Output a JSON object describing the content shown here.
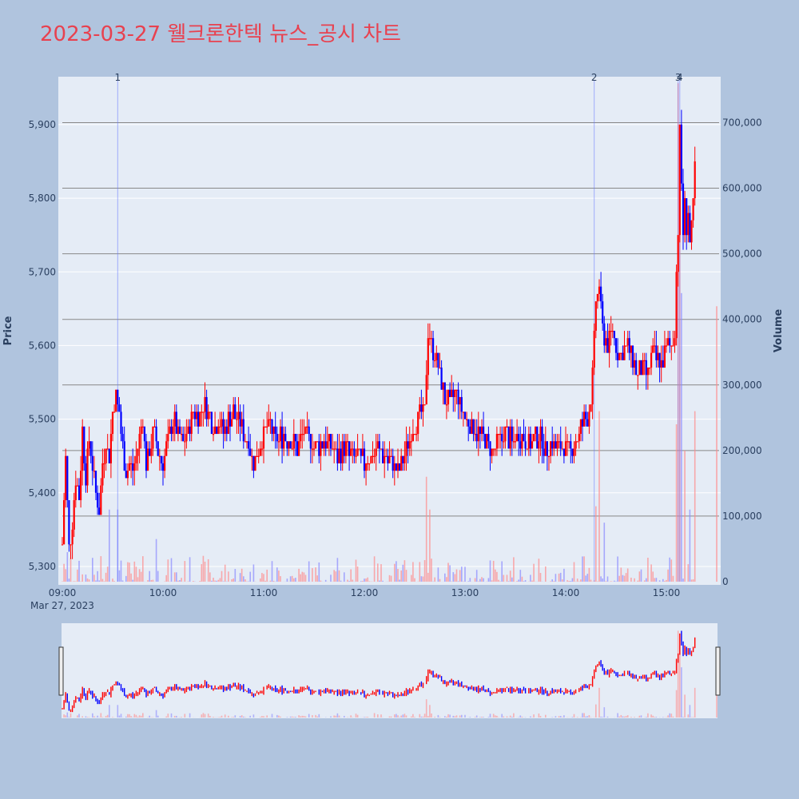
{
  "title": "2023-03-27 웰크론한텍 뉴스_공시 차트",
  "colors": {
    "background": "#b0c4de",
    "plot_bg": "#e5ecf6",
    "up": "#ff0000",
    "down": "#0000ff",
    "title": "#e8414f",
    "grid": "#ffffff",
    "volume_grid": "#888888"
  },
  "chart_data": {
    "type": "candlestick",
    "x_axis": {
      "ticks": [
        "09:00",
        "10:00",
        "11:00",
        "12:00",
        "13:00",
        "14:00",
        "15:00"
      ],
      "date_label": "Mar 27, 2023",
      "start": "09:00",
      "end": "15:30"
    },
    "y_price": {
      "label": "Price",
      "range": [
        5275,
        5965
      ],
      "ticks": [
        "5,300",
        "5,400",
        "5,500",
        "5,600",
        "5,700",
        "5,800",
        "5,900"
      ],
      "tick_values": [
        5300,
        5400,
        5500,
        5600,
        5700,
        5800,
        5900
      ]
    },
    "y_volume": {
      "label": "Volume",
      "range": [
        0,
        770000
      ],
      "ticks": [
        "0",
        "100,000",
        "200,000",
        "300,000",
        "400,000",
        "500,000",
        "600,000",
        "700,000"
      ],
      "tick_values": [
        0,
        100000,
        200000,
        300000,
        400000,
        500000,
        600000,
        700000
      ]
    },
    "news_markers": [
      {
        "label": "1",
        "time": "09:33"
      },
      {
        "label": "2",
        "time": "14:17"
      },
      {
        "label": "3",
        "time": "15:07"
      },
      {
        "label": "4",
        "time": "15:08"
      }
    ],
    "price_path": [
      [
        "09:00",
        5330
      ],
      [
        "09:02",
        5450
      ],
      [
        "09:04",
        5320
      ],
      [
        "09:06",
        5360
      ],
      [
        "09:08",
        5420
      ],
      [
        "09:10",
        5390
      ],
      [
        "09:12",
        5490
      ],
      [
        "09:14",
        5420
      ],
      [
        "09:16",
        5470
      ],
      [
        "09:18",
        5440
      ],
      [
        "09:20",
        5400
      ],
      [
        "09:22",
        5380
      ],
      [
        "09:24",
        5440
      ],
      [
        "09:26",
        5470
      ],
      [
        "09:28",
        5450
      ],
      [
        "09:30",
        5510
      ],
      [
        "09:32",
        5530
      ],
      [
        "09:34",
        5510
      ],
      [
        "09:36",
        5460
      ],
      [
        "09:38",
        5430
      ],
      [
        "09:40",
        5440
      ],
      [
        "09:42",
        5430
      ],
      [
        "09:44",
        5450
      ],
      [
        "09:46",
        5480
      ],
      [
        "09:48",
        5500
      ],
      [
        "09:50",
        5440
      ],
      [
        "09:52",
        5460
      ],
      [
        "09:54",
        5480
      ],
      [
        "09:56",
        5470
      ],
      [
        "09:58",
        5450
      ],
      [
        "10:00",
        5440
      ],
      [
        "10:03",
        5470
      ],
      [
        "10:06",
        5500
      ],
      [
        "10:09",
        5480
      ],
      [
        "10:12",
        5470
      ],
      [
        "10:15",
        5480
      ],
      [
        "10:18",
        5510
      ],
      [
        "10:21",
        5500
      ],
      [
        "10:24",
        5520
      ],
      [
        "10:27",
        5510
      ],
      [
        "10:30",
        5490
      ],
      [
        "10:33",
        5500
      ],
      [
        "10:36",
        5480
      ],
      [
        "10:39",
        5500
      ],
      [
        "10:42",
        5510
      ],
      [
        "10:45",
        5500
      ],
      [
        "10:48",
        5480
      ],
      [
        "10:51",
        5470
      ],
      [
        "10:54",
        5440
      ],
      [
        "10:57",
        5460
      ],
      [
        "11:00",
        5480
      ],
      [
        "11:04",
        5490
      ],
      [
        "11:08",
        5470
      ],
      [
        "11:12",
        5480
      ],
      [
        "11:16",
        5470
      ],
      [
        "11:20",
        5460
      ],
      [
        "11:24",
        5480
      ],
      [
        "11:28",
        5470
      ],
      [
        "11:32",
        5460
      ],
      [
        "11:36",
        5470
      ],
      [
        "11:40",
        5460
      ],
      [
        "11:44",
        5450
      ],
      [
        "11:48",
        5460
      ],
      [
        "11:52",
        5450
      ],
      [
        "11:56",
        5450
      ],
      [
        "12:00",
        5440
      ],
      [
        "12:04",
        5450
      ],
      [
        "12:08",
        5460
      ],
      [
        "12:12",
        5450
      ],
      [
        "12:16",
        5440
      ],
      [
        "12:20",
        5430
      ],
      [
        "12:24",
        5450
      ],
      [
        "12:28",
        5480
      ],
      [
        "12:32",
        5500
      ],
      [
        "12:36",
        5510
      ],
      [
        "12:38",
        5620
      ],
      [
        "12:40",
        5600
      ],
      [
        "12:42",
        5590
      ],
      [
        "12:45",
        5560
      ],
      [
        "12:48",
        5530
      ],
      [
        "12:51",
        5520
      ],
      [
        "12:54",
        5540
      ],
      [
        "12:57",
        5520
      ],
      [
        "13:00",
        5500
      ],
      [
        "13:04",
        5490
      ],
      [
        "13:08",
        5480
      ],
      [
        "13:12",
        5470
      ],
      [
        "13:16",
        5460
      ],
      [
        "13:20",
        5470
      ],
      [
        "13:24",
        5480
      ],
      [
        "13:28",
        5470
      ],
      [
        "13:32",
        5480
      ],
      [
        "13:36",
        5470
      ],
      [
        "13:40",
        5470
      ],
      [
        "13:44",
        5480
      ],
      [
        "13:48",
        5460
      ],
      [
        "13:52",
        5470
      ],
      [
        "13:56",
        5460
      ],
      [
        "14:00",
        5460
      ],
      [
        "14:04",
        5460
      ],
      [
        "14:08",
        5480
      ],
      [
        "14:11",
        5500
      ],
      [
        "14:14",
        5510
      ],
      [
        "14:16",
        5560
      ],
      [
        "14:18",
        5660
      ],
      [
        "14:20",
        5680
      ],
      [
        "14:22",
        5620
      ],
      [
        "14:25",
        5600
      ],
      [
        "14:28",
        5620
      ],
      [
        "14:31",
        5590
      ],
      [
        "14:34",
        5590
      ],
      [
        "14:37",
        5600
      ],
      [
        "14:40",
        5580
      ],
      [
        "14:43",
        5560
      ],
      [
        "14:46",
        5570
      ],
      [
        "14:49",
        5560
      ],
      [
        "14:52",
        5590
      ],
      [
        "14:55",
        5580
      ],
      [
        "14:58",
        5580
      ],
      [
        "15:01",
        5600
      ],
      [
        "15:03",
        5600
      ],
      [
        "15:05",
        5620
      ],
      [
        "15:06",
        5700
      ],
      [
        "15:07",
        5760
      ],
      [
        "15:08",
        5890
      ],
      [
        "15:09",
        5820
      ],
      [
        "15:10",
        5750
      ],
      [
        "15:11",
        5790
      ],
      [
        "15:12",
        5760
      ],
      [
        "15:13",
        5780
      ],
      [
        "15:14",
        5740
      ],
      [
        "15:15",
        5760
      ],
      [
        "15:16",
        5790
      ],
      [
        "15:17",
        5840
      ]
    ],
    "volume_spikes": [
      {
        "time": "09:03",
        "value": 45000
      },
      {
        "time": "09:28",
        "value": 110000
      },
      {
        "time": "09:33",
        "value": 110000
      },
      {
        "time": "09:56",
        "value": 65000
      },
      {
        "time": "12:37",
        "value": 160000
      },
      {
        "time": "12:39",
        "value": 110000
      },
      {
        "time": "14:18",
        "value": 115000
      },
      {
        "time": "14:20",
        "value": 260000
      },
      {
        "time": "14:23",
        "value": 90000
      },
      {
        "time": "15:06",
        "value": 240000
      },
      {
        "time": "15:07",
        "value": 760000
      },
      {
        "time": "15:08",
        "value": 560000
      },
      {
        "time": "15:09",
        "value": 440000
      },
      {
        "time": "15:11",
        "value": 200000
      },
      {
        "time": "15:14",
        "value": 110000
      },
      {
        "time": "15:17",
        "value": 260000
      },
      {
        "time": "15:30",
        "value": 420000
      }
    ]
  }
}
